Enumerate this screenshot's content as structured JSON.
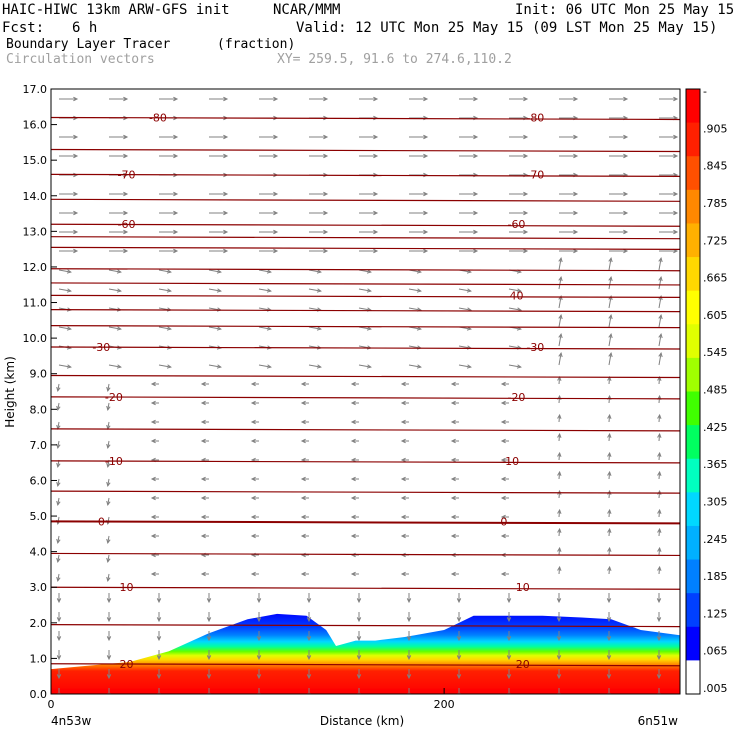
{
  "header": {
    "model": "HAIC-HIWC 13km ARW-GFS init",
    "org": "NCAR/MMM",
    "init": "Init: 06 UTC Mon 25 May 15",
    "fcst_label": "Fcst:",
    "fcst_value": "6 h",
    "valid": "Valid: 12 UTC Mon 25 May 15 (09 LST Mon 25 May 15)",
    "field": "Boundary Layer Tracer",
    "field_units": "(fraction)",
    "vectors": "Circulation vectors",
    "xy": "XY= 259.5, 91.6 to 274.6,110.2"
  },
  "colors": {
    "contour": "#8b0000",
    "vector": "#808080",
    "colorbar": [
      "#ffffff",
      "#0000ff",
      "#0040ff",
      "#0080ff",
      "#00b0ff",
      "#00d8ff",
      "#00ffc0",
      "#00ff60",
      "#40ff00",
      "#a0ff00",
      "#e0ff00",
      "#ffff00",
      "#ffd800",
      "#ffb000",
      "#ff8800",
      "#ff5000",
      "#ff2000",
      "#ff0000"
    ]
  },
  "chart_data": {
    "type": "heatmap",
    "title": "Boundary Layer Tracer",
    "xlabel": "Distance (km)",
    "ylabel": "Height (km)",
    "xlim": [
      0,
      320
    ],
    "ylim": [
      0,
      17
    ],
    "x_ticks": [
      0,
      200
    ],
    "x_tick_labels": [
      "0",
      "200"
    ],
    "x_end_labels": [
      "4n53w",
      "6n51w"
    ],
    "y_ticks": [
      0,
      1,
      2,
      3,
      4,
      5,
      6,
      7,
      8,
      9,
      10,
      11,
      12,
      13,
      14,
      15,
      16,
      17
    ],
    "y_tick_labels": [
      "0.0",
      "1.0",
      "2.0",
      "3.0",
      "4.0",
      "5.0",
      "6.0",
      "7.0",
      "8.0",
      "9.0",
      "10.0",
      "11.0",
      "12.0",
      "13.0",
      "14.0",
      "15.0",
      "16.0",
      "17.0"
    ],
    "colorbar_labels": [
      "-",
      ".905",
      ".845",
      ".785",
      ".725",
      ".665",
      ".605",
      ".545",
      ".485",
      ".425",
      ".365",
      ".305",
      ".245",
      ".185",
      ".125",
      ".065",
      ".005"
    ],
    "tracer_top_km": {
      "x": [
        0,
        20,
        40,
        60,
        80,
        100,
        115,
        130,
        140,
        145,
        155,
        165,
        180,
        200,
        215,
        230,
        250,
        270,
        285,
        300,
        320
      ],
      "top": [
        0.7,
        0.8,
        0.9,
        1.2,
        1.7,
        2.1,
        2.25,
        2.2,
        1.8,
        1.35,
        1.5,
        1.5,
        1.6,
        1.8,
        2.2,
        2.2,
        2.2,
        2.15,
        2.1,
        1.8,
        1.65
      ]
    },
    "temperature_contours": [
      {
        "label": "20",
        "height_km": 0.85
      },
      {
        "label": "10",
        "height_km": 3.0
      },
      {
        "label": "0",
        "height_km": 4.85
      },
      {
        "label": "-10",
        "height_km": 6.55
      },
      {
        "label": "-20",
        "height_km": 8.35
      },
      {
        "label": "-30",
        "height_km": 9.75
      },
      {
        "label": "40",
        "height_km": 11.2
      },
      {
        "label": "-60",
        "height_km": 13.2
      },
      {
        "label": "-70",
        "height_km": 14.6
      },
      {
        "label": "-80",
        "height_km": 16.2
      }
    ],
    "other_contour_heights_km": [
      1.95,
      3.95,
      5.7,
      7.45,
      8.95,
      10.35,
      10.8,
      11.55,
      11.95,
      12.55,
      12.85,
      13.9,
      15.3
    ]
  }
}
